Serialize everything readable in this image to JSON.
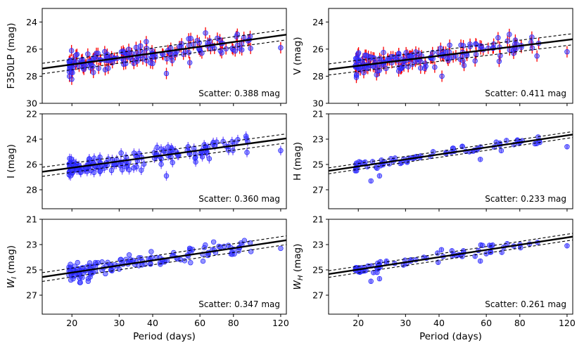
{
  "figure": {
    "xlabel": "Period (days)"
  },
  "chart_data": [
    {
      "type": "scatter",
      "panel": "F350LP",
      "ylabel_main": "F350LP",
      "ylabel_sub": "",
      "ylabel_unit": "(mag)",
      "ylim": [
        30,
        23
      ],
      "yticks": [
        24,
        26,
        28,
        30
      ],
      "xlim_log": [
        15.5,
        126
      ],
      "xticks": [
        20,
        30,
        40,
        60,
        80,
        120
      ],
      "xtick_labels": [
        "20",
        "30",
        "40",
        "60",
        "80",
        "120"
      ],
      "fit": {
        "intercept_at_30d": 26.65,
        "slope": -2.75,
        "envelope": 0.388
      },
      "scatter_text": "Scatter: 0.388 mag",
      "style": {
        "show_x_labels": false,
        "n_points": 160,
        "seed": 11,
        "jitter": 0.38,
        "err": 0.42,
        "errbar": true,
        "errcolor": "#ff0000"
      },
      "outliers": [
        {
          "p": 45,
          "m": 27.8
        },
        {
          "p": 55,
          "m": 27.0
        },
        {
          "p": 120,
          "m": 25.9
        },
        {
          "p": 72,
          "m": 25.6
        }
      ]
    },
    {
      "type": "scatter",
      "panel": "V",
      "ylabel_main": "V",
      "ylabel_sub": "",
      "ylabel_unit": "(mag)",
      "ylim": [
        30,
        23
      ],
      "yticks": [
        24,
        26,
        28,
        30
      ],
      "xlim_log": [
        15.5,
        126
      ],
      "xticks": [
        20,
        30,
        40,
        60,
        80,
        120
      ],
      "xtick_labels": [
        "20",
        "30",
        "40",
        "60",
        "80",
        "120"
      ],
      "fit": {
        "intercept_at_30d": 26.8,
        "slope": -2.45,
        "envelope": 0.411
      },
      "scatter_text": "Scatter: 0.411 mag",
      "style": {
        "show_x_labels": false,
        "n_points": 160,
        "seed": 23,
        "jitter": 0.42,
        "err": 0.42,
        "errbar": true,
        "errcolor": "#ff0000"
      },
      "outliers": [
        {
          "p": 41,
          "m": 28.0
        },
        {
          "p": 67,
          "m": 26.9
        },
        {
          "p": 120,
          "m": 26.2
        },
        {
          "p": 72,
          "m": 25.4
        }
      ]
    },
    {
      "type": "scatter",
      "panel": "I",
      "ylabel_main": "I",
      "ylabel_sub": "",
      "ylabel_unit": "(mag)",
      "ylim": [
        29.5,
        22
      ],
      "yticks": [
        22,
        24,
        26,
        28
      ],
      "xlim_log": [
        15.5,
        126
      ],
      "xticks": [
        20,
        30,
        40,
        60,
        80,
        120
      ],
      "xtick_labels": [
        "20",
        "30",
        "40",
        "60",
        "80",
        "120"
      ],
      "fit": {
        "intercept_at_30d": 25.75,
        "slope": -2.9,
        "envelope": 0.36
      },
      "scatter_text": "Scatter: 0.360 mag",
      "style": {
        "show_x_labels": false,
        "n_points": 160,
        "seed": 37,
        "jitter": 0.34,
        "err": 0.38,
        "errbar": true,
        "errcolor": "#7a5cff"
      },
      "outliers": [
        {
          "p": 45,
          "m": 26.9
        },
        {
          "p": 120,
          "m": 24.9
        },
        {
          "p": 55,
          "m": 25.2
        }
      ]
    },
    {
      "type": "scatter",
      "panel": "H",
      "ylabel_main": "H",
      "ylabel_sub": "",
      "ylabel_unit": "(mag)",
      "ylim": [
        28.5,
        21
      ],
      "yticks": [
        21,
        23,
        25,
        27
      ],
      "xlim_log": [
        15.5,
        126
      ],
      "xticks": [
        20,
        30,
        40,
        60,
        80,
        120
      ],
      "xtick_labels": [
        "20",
        "30",
        "40",
        "60",
        "80",
        "120"
      ],
      "fit": {
        "intercept_at_30d": 24.6,
        "slope": -3.15,
        "envelope": 0.233
      },
      "scatter_text": "Scatter: 0.233 mag",
      "style": {
        "show_x_labels": false,
        "n_points": 70,
        "seed": 51,
        "jitter": 0.2,
        "err": 0.16,
        "errbar": true,
        "errcolor": "#7a5cff"
      },
      "outliers": [
        {
          "p": 22.3,
          "m": 26.3
        },
        {
          "p": 24,
          "m": 25.9
        },
        {
          "p": 23.5,
          "m": 25.3
        },
        {
          "p": 120,
          "m": 23.6
        },
        {
          "p": 57,
          "m": 24.6
        }
      ]
    },
    {
      "type": "scatter",
      "panel": "WI",
      "ylabel_main": "W",
      "ylabel_sub": "I",
      "ylabel_unit": "(mag)",
      "ylim": [
        28.5,
        21
      ],
      "yticks": [
        21,
        23,
        25,
        27
      ],
      "xlim_log": [
        15.5,
        126
      ],
      "xticks": [
        20,
        30,
        40,
        60,
        80,
        120
      ],
      "xtick_labels": [
        "20",
        "30",
        "40",
        "60",
        "80",
        "120"
      ],
      "fit": {
        "intercept_at_30d": 24.65,
        "slope": -3.2,
        "envelope": 0.347
      },
      "scatter_text": "Scatter: 0.347 mag",
      "style": {
        "show_x_labels": true,
        "n_points": 150,
        "seed": 67,
        "jitter": 0.33,
        "err": 0.12,
        "errbar": false,
        "errcolor": "#7a5cff"
      },
      "outliers": [
        {
          "p": 21.5,
          "m": 26.0
        },
        {
          "p": 23,
          "m": 25.9
        },
        {
          "p": 120,
          "m": 23.3
        }
      ]
    },
    {
      "type": "scatter",
      "panel": "WH",
      "ylabel_main": "W",
      "ylabel_sub": "H",
      "ylabel_unit": "(mag)",
      "ylim": [
        28.5,
        21
      ],
      "yticks": [
        21,
        23,
        25,
        27
      ],
      "xlim_log": [
        15.5,
        126
      ],
      "xticks": [
        20,
        30,
        40,
        60,
        80,
        120
      ],
      "xtick_labels": [
        "20",
        "30",
        "40",
        "60",
        "80",
        "120"
      ],
      "fit": {
        "intercept_at_30d": 24.4,
        "slope": -3.25,
        "envelope": 0.261
      },
      "scatter_text": "Scatter: 0.261 mag",
      "style": {
        "show_x_labels": true,
        "n_points": 70,
        "seed": 79,
        "jitter": 0.22,
        "err": 0.16,
        "errbar": true,
        "errcolor": "#7a5cff"
      },
      "outliers": [
        {
          "p": 22.3,
          "m": 25.9
        },
        {
          "p": 24,
          "m": 25.7
        },
        {
          "p": 23.5,
          "m": 25.2
        },
        {
          "p": 120,
          "m": 23.1
        },
        {
          "p": 57,
          "m": 24.3
        }
      ]
    }
  ]
}
